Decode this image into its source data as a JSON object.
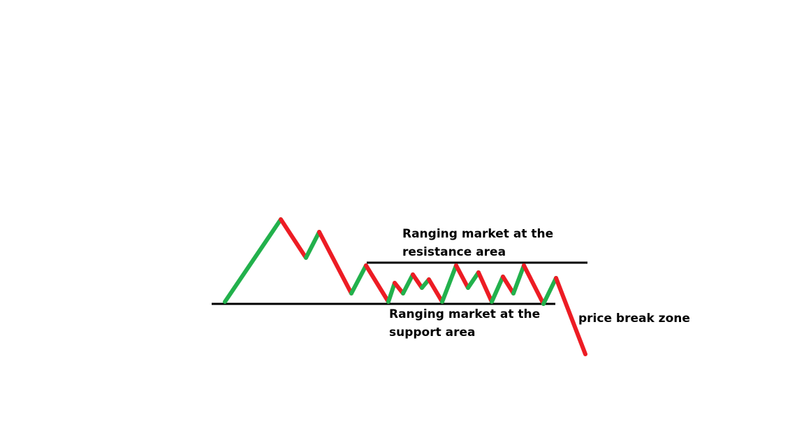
{
  "labels": {
    "resistance": {
      "line1": "Ranging market at the",
      "line2": "resistance area"
    },
    "support": {
      "line1": "Ranging market at the",
      "line2": "support area"
    },
    "price_break": "price break zone"
  },
  "colors": {
    "up_move": "#22b14c",
    "down_move": "#ed1c24",
    "level_line": "#000000",
    "background": "#ffffff"
  }
}
